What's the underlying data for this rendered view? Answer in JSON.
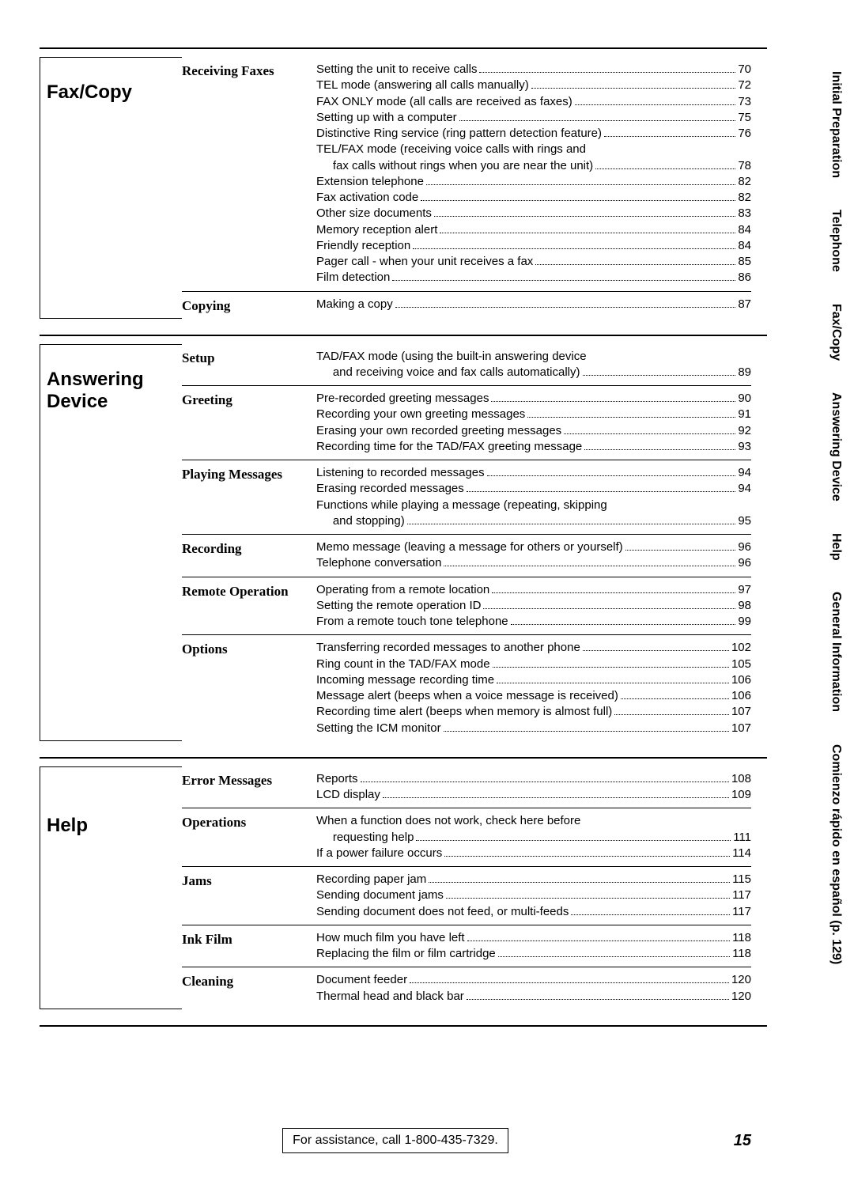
{
  "sections": [
    {
      "label": "Fax/Copy",
      "subsections": [
        {
          "title": "Receiving Faxes",
          "entries": [
            {
              "text": "Setting the unit to receive calls",
              "page": "70"
            },
            {
              "text": "TEL mode (answering all calls manually)",
              "page": "72"
            },
            {
              "text": "FAX ONLY mode (all calls are received as faxes)",
              "page": "73"
            },
            {
              "text": "Setting up with a computer",
              "page": "75"
            },
            {
              "text": "Distinctive Ring service (ring pattern detection feature)",
              "page": "76"
            },
            {
              "text": "TEL/FAX mode (receiving voice calls with rings and",
              "page": null
            },
            {
              "text": "     fax calls without rings when you are near the unit)",
              "page": "78"
            },
            {
              "text": "Extension telephone",
              "page": "82"
            },
            {
              "text": "Fax activation code",
              "page": "82"
            },
            {
              "text": "Other size documents",
              "page": "83"
            },
            {
              "text": "Memory reception alert",
              "page": "84"
            },
            {
              "text": "Friendly reception",
              "page": "84"
            },
            {
              "text": "Pager call - when your unit receives a fax",
              "page": "85"
            },
            {
              "text": "Film detection",
              "page": "86"
            }
          ]
        },
        {
          "title": "Copying",
          "entries": [
            {
              "text": "Making a copy",
              "page": "87"
            }
          ]
        }
      ]
    },
    {
      "label": "Answering Device",
      "subsections": [
        {
          "title": "Setup",
          "entries": [
            {
              "text": "TAD/FAX mode (using the built-in answering device",
              "page": null
            },
            {
              "text": "     and receiving voice and fax calls automatically)",
              "page": "89"
            }
          ]
        },
        {
          "title": "Greeting",
          "entries": [
            {
              "text": "Pre-recorded greeting messages",
              "page": "90"
            },
            {
              "text": "Recording your own greeting messages",
              "page": "91"
            },
            {
              "text": "Erasing your own recorded greeting messages",
              "page": "92"
            },
            {
              "text": "Recording time for the TAD/FAX greeting message",
              "page": "93"
            }
          ]
        },
        {
          "title": "Playing Messages",
          "entries": [
            {
              "text": "Listening to recorded messages",
              "page": "94"
            },
            {
              "text": "Erasing recorded messages",
              "page": "94"
            },
            {
              "text": "Functions while playing a message (repeating, skipping",
              "page": null
            },
            {
              "text": "     and stopping)",
              "page": "95"
            }
          ]
        },
        {
          "title": "Recording",
          "entries": [
            {
              "text": "Memo message (leaving a message for others or yourself)",
              "page": "96"
            },
            {
              "text": "Telephone conversation",
              "page": "96"
            }
          ]
        },
        {
          "title": "Remote Operation",
          "entries": [
            {
              "text": "Operating from a remote location",
              "page": "97"
            },
            {
              "text": "Setting the remote operation ID",
              "page": "98"
            },
            {
              "text": "From a remote touch tone telephone",
              "page": "99"
            }
          ]
        },
        {
          "title": "Options",
          "entries": [
            {
              "text": "Transferring recorded messages to another phone",
              "page": "102"
            },
            {
              "text": "Ring count in the TAD/FAX mode",
              "page": "105"
            },
            {
              "text": "Incoming message recording time",
              "page": "106"
            },
            {
              "text": "Message alert (beeps when a voice message is received)",
              "page": "106"
            },
            {
              "text": "Recording time alert (beeps when memory is almost full)",
              "page": "107"
            },
            {
              "text": "Setting the ICM monitor",
              "page": "107"
            }
          ]
        }
      ]
    },
    {
      "label": "Help",
      "subsections": [
        {
          "title": "Error Messages",
          "entries": [
            {
              "text": "Reports",
              "page": "108"
            },
            {
              "text": "LCD display",
              "page": "109"
            }
          ]
        },
        {
          "title": "Operations",
          "entries": [
            {
              "text": "When a function does not work, check here before",
              "page": null
            },
            {
              "text": "     requesting help",
              "page": "111"
            },
            {
              "text": "If a power failure occurs",
              "page": "114"
            }
          ]
        },
        {
          "title": "Jams",
          "entries": [
            {
              "text": "Recording paper jam",
              "page": "115"
            },
            {
              "text": "Sending document jams",
              "page": "117"
            },
            {
              "text": "Sending document does not feed, or multi-feeds",
              "page": "117"
            }
          ]
        },
        {
          "title": "Ink Film",
          "entries": [
            {
              "text": "How much film you have left",
              "page": "118"
            },
            {
              "text": "Replacing the film or film cartridge",
              "page": "118"
            }
          ]
        },
        {
          "title": "Cleaning",
          "entries": [
            {
              "text": "Document feeder",
              "page": "120"
            },
            {
              "text": "Thermal head and black bar",
              "page": "120"
            }
          ]
        }
      ]
    }
  ],
  "side_tabs": [
    "Initial Preparation",
    "Telephone",
    "Fax/Copy",
    "Answering Device",
    "Help",
    "General Information",
    "Comienzo rápido en español (p. 129)"
  ],
  "footer": {
    "assist": "For assistance, call 1-800-435-7329.",
    "page": "15"
  }
}
